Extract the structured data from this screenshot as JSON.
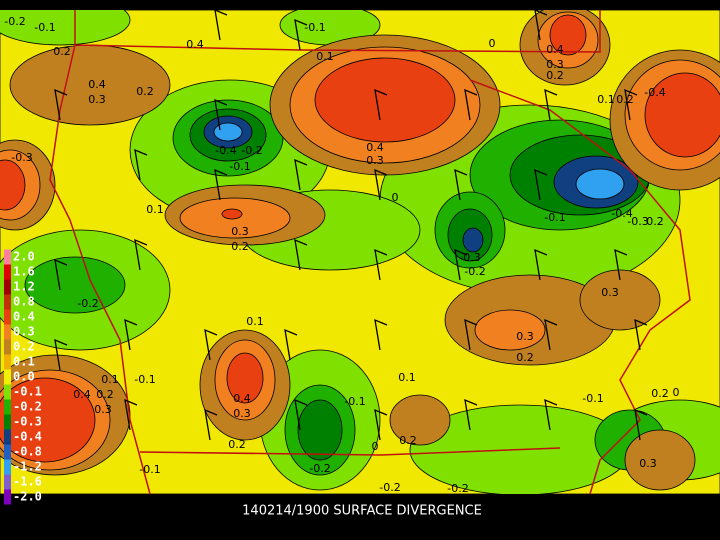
{
  "caption": "140214/1900 SURFACE DIVERGENCE",
  "legend": [
    {
      "label": "2.0",
      "color": "#ff80a0"
    },
    {
      "label": "1.6",
      "color": "#e00000"
    },
    {
      "label": "1.2",
      "color": "#a00000"
    },
    {
      "label": "0.8",
      "color": "#c03000"
    },
    {
      "label": "0.4",
      "color": "#e84010"
    },
    {
      "label": "0.3",
      "color": "#f08020"
    },
    {
      "label": "0.2",
      "color": "#c08020"
    },
    {
      "label": "0.1",
      "color": "#f0b000"
    },
    {
      "label": "0.0",
      "color": "#f0f000"
    },
    {
      "label": "-0.1",
      "color": "#80e000"
    },
    {
      "label": "-0.2",
      "color": "#20b000"
    },
    {
      "label": "-0.3",
      "color": "#008000"
    },
    {
      "label": "-0.4",
      "color": "#104080"
    },
    {
      "label": "-0.8",
      "color": "#2060c0"
    },
    {
      "label": "-1.2",
      "color": "#30a0f0"
    },
    {
      "label": "-1.6",
      "color": "#8060d0"
    },
    {
      "label": "-2.0",
      "color": "#8000c0"
    }
  ],
  "contour_labels": [
    "-0.2",
    "-0.1",
    "0.2",
    "0.4",
    "-0.1",
    "0.1",
    "0",
    "0.4",
    "0.3",
    "0.2",
    "0.1",
    "0.2",
    "-0.4",
    "0.4",
    "0.3",
    "0.2",
    "-0.3",
    "-0.4",
    "-0.2",
    "-0.1",
    "0.4",
    "0.3",
    "0",
    "0.1",
    "0.3",
    "0.2",
    "-0.1",
    "-0.4",
    "-0.3",
    "0.2",
    "-0.3",
    "-0.2",
    "0.3",
    "-0.2",
    "0.1",
    "0.3",
    "0.2",
    "0.1",
    "0.1",
    "-0.1",
    "0.4",
    "0.2",
    "0.3",
    "0.4",
    "0.3",
    "-0.1",
    "-0.1",
    "0",
    "0.2",
    "0.2",
    "0",
    "0.2",
    "-0.2",
    "-0.1",
    "-0.2",
    "-0.2",
    "0.3"
  ]
}
